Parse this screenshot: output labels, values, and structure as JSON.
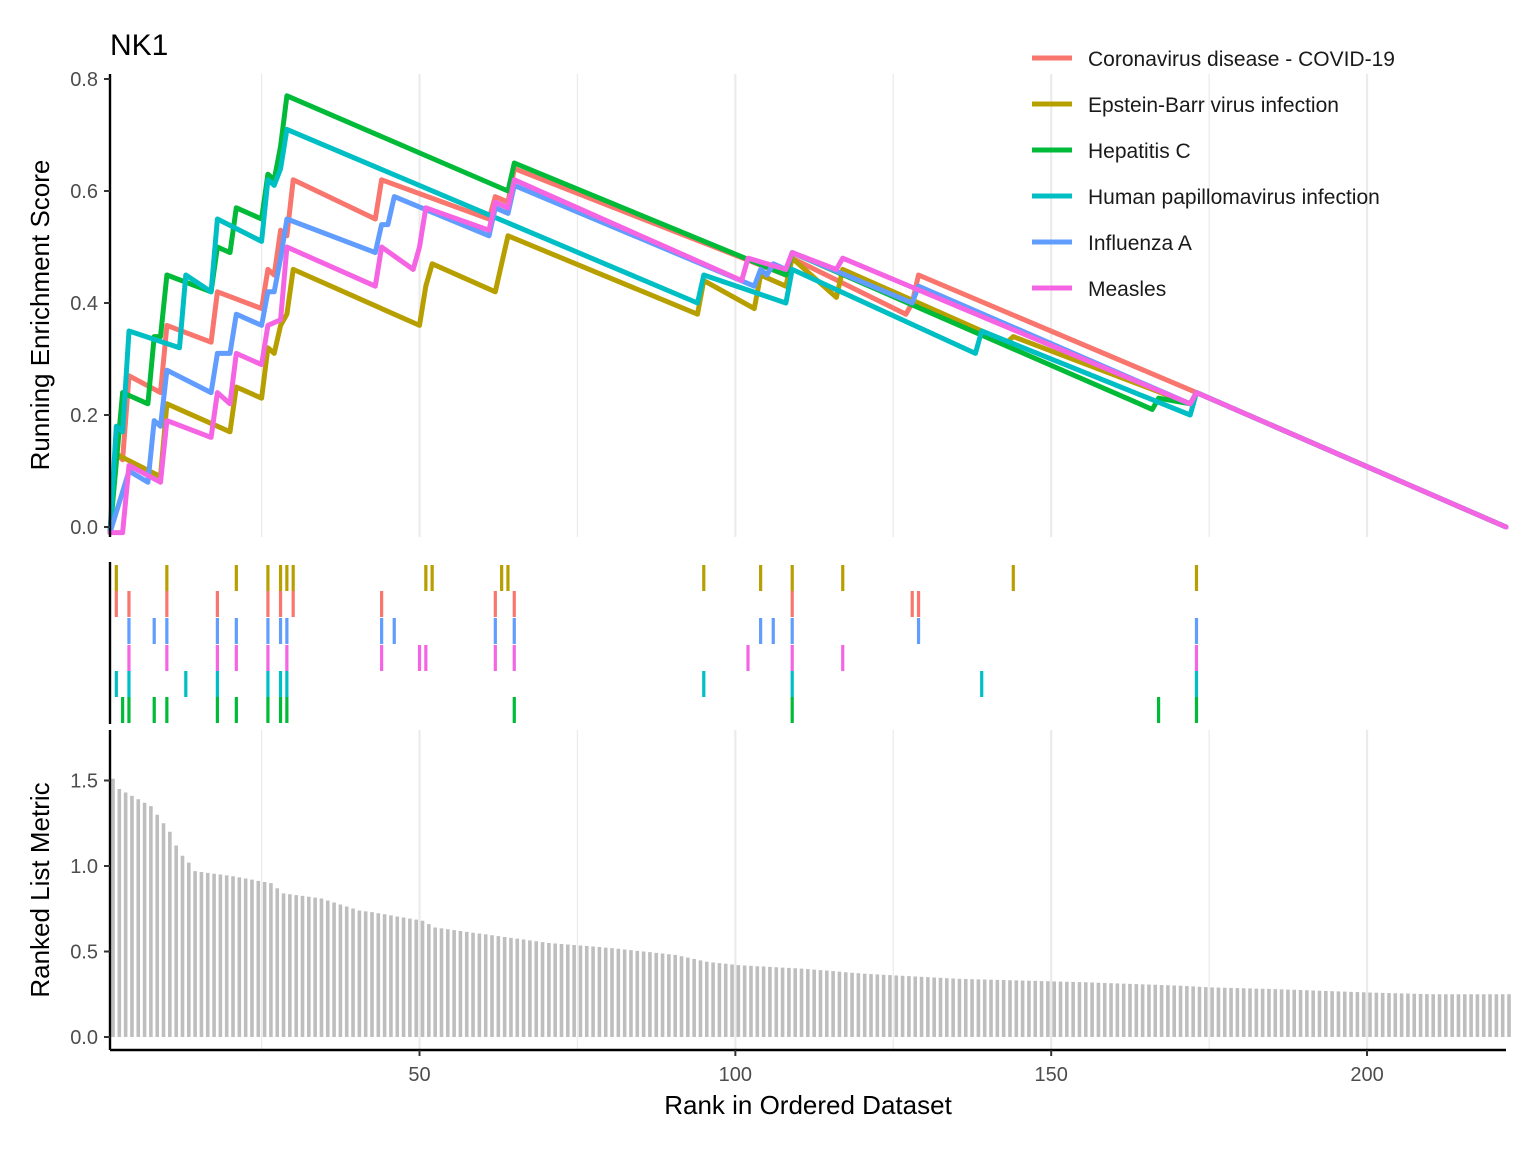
{
  "chart_data": {
    "type": "line",
    "title": "NK1",
    "xlabel": "Rank in Ordered Dataset",
    "ylabel_top": "Running Enrichment Score",
    "ylabel_bottom": "Ranked List Metric",
    "xlim": [
      1,
      222
    ],
    "x_ticks": [
      50,
      100,
      150,
      200
    ],
    "top_ylim": [
      -0.02,
      0.8
    ],
    "top_y_ticks": [
      "0.0",
      "0.2",
      "0.4",
      "0.6",
      "0.8"
    ],
    "bottom_ylim": [
      0,
      1.8
    ],
    "bottom_y_ticks": [
      "0.0",
      "0.5",
      "1.0",
      "1.5"
    ],
    "grid": "vertical major and minor",
    "legend_position": "top-right",
    "series": [
      {
        "name": "Coronavirus disease - COVID-19",
        "color": "#F8766D",
        "hits": [
          2,
          4,
          10,
          18,
          26,
          28,
          30,
          44,
          62,
          65,
          109,
          128,
          129
        ],
        "points": [
          [
            1,
            -0.01
          ],
          [
            2,
            0.13
          ],
          [
            3,
            0.12
          ],
          [
            4,
            0.27
          ],
          [
            9,
            0.24
          ],
          [
            10,
            0.36
          ],
          [
            17,
            0.33
          ],
          [
            18,
            0.42
          ],
          [
            25,
            0.39
          ],
          [
            26,
            0.46
          ],
          [
            27,
            0.45
          ],
          [
            28,
            0.53
          ],
          [
            29,
            0.52
          ],
          [
            30,
            0.62
          ],
          [
            43,
            0.55
          ],
          [
            44,
            0.62
          ],
          [
            61,
            0.55
          ],
          [
            62,
            0.59
          ],
          [
            64,
            0.58
          ],
          [
            65,
            0.64
          ],
          [
            108,
            0.45
          ],
          [
            109,
            0.48
          ],
          [
            127,
            0.38
          ],
          [
            128,
            0.4
          ],
          [
            129,
            0.45
          ],
          [
            173,
            0.24
          ],
          [
            222,
            0.0
          ]
        ]
      },
      {
        "name": "Epstein-Barr virus infection",
        "color": "#B79F00",
        "hits": [
          2,
          10,
          21,
          26,
          28,
          29,
          30,
          51,
          52,
          63,
          64,
          95,
          104,
          109,
          117,
          144,
          173
        ],
        "points": [
          [
            1,
            -0.01
          ],
          [
            2,
            0.13
          ],
          [
            9,
            0.09
          ],
          [
            10,
            0.22
          ],
          [
            20,
            0.17
          ],
          [
            21,
            0.25
          ],
          [
            25,
            0.23
          ],
          [
            26,
            0.32
          ],
          [
            27,
            0.31
          ],
          [
            28,
            0.36
          ],
          [
            29,
            0.38
          ],
          [
            30,
            0.46
          ],
          [
            50,
            0.36
          ],
          [
            51,
            0.43
          ],
          [
            52,
            0.47
          ],
          [
            62,
            0.42
          ],
          [
            63,
            0.47
          ],
          [
            64,
            0.52
          ],
          [
            94,
            0.38
          ],
          [
            95,
            0.44
          ],
          [
            103,
            0.39
          ],
          [
            104,
            0.45
          ],
          [
            108,
            0.43
          ],
          [
            109,
            0.48
          ],
          [
            116,
            0.41
          ],
          [
            117,
            0.46
          ],
          [
            143,
            0.33
          ],
          [
            144,
            0.34
          ],
          [
            172,
            0.22
          ],
          [
            173,
            0.24
          ],
          [
            222,
            0.0
          ]
        ]
      },
      {
        "name": "Hepatitis C",
        "color": "#00BA38",
        "hits": [
          3,
          4,
          8,
          10,
          18,
          21,
          26,
          28,
          29,
          65,
          109,
          167,
          173
        ],
        "points": [
          [
            1,
            -0.01
          ],
          [
            3,
            0.24
          ],
          [
            7,
            0.22
          ],
          [
            8,
            0.34
          ],
          [
            9,
            0.34
          ],
          [
            10,
            0.45
          ],
          [
            17,
            0.42
          ],
          [
            18,
            0.5
          ],
          [
            20,
            0.49
          ],
          [
            21,
            0.57
          ],
          [
            25,
            0.55
          ],
          [
            26,
            0.63
          ],
          [
            27,
            0.62
          ],
          [
            28,
            0.68
          ],
          [
            29,
            0.77
          ],
          [
            64,
            0.6
          ],
          [
            65,
            0.65
          ],
          [
            108,
            0.45
          ],
          [
            109,
            0.49
          ],
          [
            166,
            0.21
          ],
          [
            167,
            0.23
          ],
          [
            172,
            0.22
          ],
          [
            173,
            0.24
          ],
          [
            222,
            0.0
          ]
        ]
      },
      {
        "name": "Human papillomavirus infection",
        "color": "#00BFC4",
        "hits": [
          2,
          4,
          13,
          18,
          26,
          28,
          29,
          95,
          109,
          139,
          173
        ],
        "points": [
          [
            1,
            -0.01
          ],
          [
            2,
            0.18
          ],
          [
            3,
            0.17
          ],
          [
            4,
            0.35
          ],
          [
            12,
            0.32
          ],
          [
            13,
            0.45
          ],
          [
            17,
            0.42
          ],
          [
            18,
            0.55
          ],
          [
            25,
            0.51
          ],
          [
            26,
            0.62
          ],
          [
            27,
            0.61
          ],
          [
            28,
            0.64
          ],
          [
            29,
            0.71
          ],
          [
            94,
            0.4
          ],
          [
            95,
            0.45
          ],
          [
            108,
            0.4
          ],
          [
            109,
            0.46
          ],
          [
            138,
            0.31
          ],
          [
            139,
            0.35
          ],
          [
            172,
            0.2
          ],
          [
            173,
            0.24
          ],
          [
            222,
            0.0
          ]
        ]
      },
      {
        "name": "Influenza A",
        "color": "#619CFF",
        "hits": [
          4,
          8,
          10,
          18,
          21,
          26,
          28,
          29,
          44,
          46,
          62,
          65,
          104,
          106,
          109,
          129,
          173
        ],
        "points": [
          [
            1,
            -0.01
          ],
          [
            4,
            0.1
          ],
          [
            7,
            0.08
          ],
          [
            8,
            0.19
          ],
          [
            9,
            0.18
          ],
          [
            10,
            0.28
          ],
          [
            17,
            0.24
          ],
          [
            18,
            0.31
          ],
          [
            20,
            0.31
          ],
          [
            21,
            0.38
          ],
          [
            25,
            0.36
          ],
          [
            26,
            0.42
          ],
          [
            27,
            0.42
          ],
          [
            28,
            0.48
          ],
          [
            29,
            0.55
          ],
          [
            43,
            0.49
          ],
          [
            44,
            0.54
          ],
          [
            45,
            0.54
          ],
          [
            46,
            0.59
          ],
          [
            61,
            0.52
          ],
          [
            62,
            0.57
          ],
          [
            64,
            0.56
          ],
          [
            65,
            0.61
          ],
          [
            103,
            0.43
          ],
          [
            104,
            0.46
          ],
          [
            105,
            0.45
          ],
          [
            106,
            0.47
          ],
          [
            108,
            0.46
          ],
          [
            109,
            0.49
          ],
          [
            128,
            0.4
          ],
          [
            129,
            0.43
          ],
          [
            172,
            0.22
          ],
          [
            173,
            0.24
          ],
          [
            222,
            0.0
          ]
        ]
      },
      {
        "name": "Measles",
        "color": "#F564E3",
        "hits": [
          4,
          10,
          18,
          21,
          26,
          29,
          44,
          50,
          51,
          62,
          65,
          102,
          109,
          117,
          173
        ],
        "points": [
          [
            1,
            -0.01
          ],
          [
            3,
            -0.01
          ],
          [
            4,
            0.11
          ],
          [
            9,
            0.08
          ],
          [
            10,
            0.19
          ],
          [
            17,
            0.16
          ],
          [
            18,
            0.24
          ],
          [
            20,
            0.22
          ],
          [
            21,
            0.31
          ],
          [
            25,
            0.29
          ],
          [
            26,
            0.36
          ],
          [
            28,
            0.37
          ],
          [
            29,
            0.5
          ],
          [
            43,
            0.43
          ],
          [
            44,
            0.5
          ],
          [
            49,
            0.46
          ],
          [
            50,
            0.5
          ],
          [
            51,
            0.57
          ],
          [
            61,
            0.53
          ],
          [
            62,
            0.58
          ],
          [
            64,
            0.57
          ],
          [
            65,
            0.62
          ],
          [
            101,
            0.44
          ],
          [
            102,
            0.48
          ],
          [
            108,
            0.46
          ],
          [
            109,
            0.49
          ],
          [
            116,
            0.46
          ],
          [
            117,
            0.48
          ],
          [
            172,
            0.22
          ],
          [
            173,
            0.24
          ],
          [
            222,
            0.0
          ]
        ]
      }
    ],
    "ranked_metric": {
      "color": "#BEBEBE",
      "profile": [
        [
          1,
          1.51
        ],
        [
          2,
          1.45
        ],
        [
          3,
          1.43
        ],
        [
          4,
          1.41
        ],
        [
          5,
          1.39
        ],
        [
          6,
          1.37
        ],
        [
          7,
          1.35
        ],
        [
          8,
          1.3
        ],
        [
          9,
          1.25
        ],
        [
          10,
          1.2
        ],
        [
          11,
          1.12
        ],
        [
          12,
          1.06
        ],
        [
          13,
          1.02
        ],
        [
          14,
          0.97
        ],
        [
          20,
          0.94
        ],
        [
          26,
          0.9
        ],
        [
          28,
          0.84
        ],
        [
          34,
          0.81
        ],
        [
          40,
          0.74
        ],
        [
          42,
          0.73
        ],
        [
          50,
          0.68
        ],
        [
          52,
          0.64
        ],
        [
          60,
          0.6
        ],
        [
          66,
          0.57
        ],
        [
          70,
          0.55
        ],
        [
          80,
          0.52
        ],
        [
          90,
          0.48
        ],
        [
          95,
          0.44
        ],
        [
          100,
          0.42
        ],
        [
          110,
          0.4
        ],
        [
          120,
          0.37
        ],
        [
          135,
          0.34
        ],
        [
          145,
          0.33
        ],
        [
          155,
          0.32
        ],
        [
          170,
          0.3
        ],
        [
          175,
          0.29
        ],
        [
          185,
          0.28
        ],
        [
          200,
          0.26
        ],
        [
          210,
          0.25
        ],
        [
          222,
          0.25
        ]
      ]
    }
  }
}
